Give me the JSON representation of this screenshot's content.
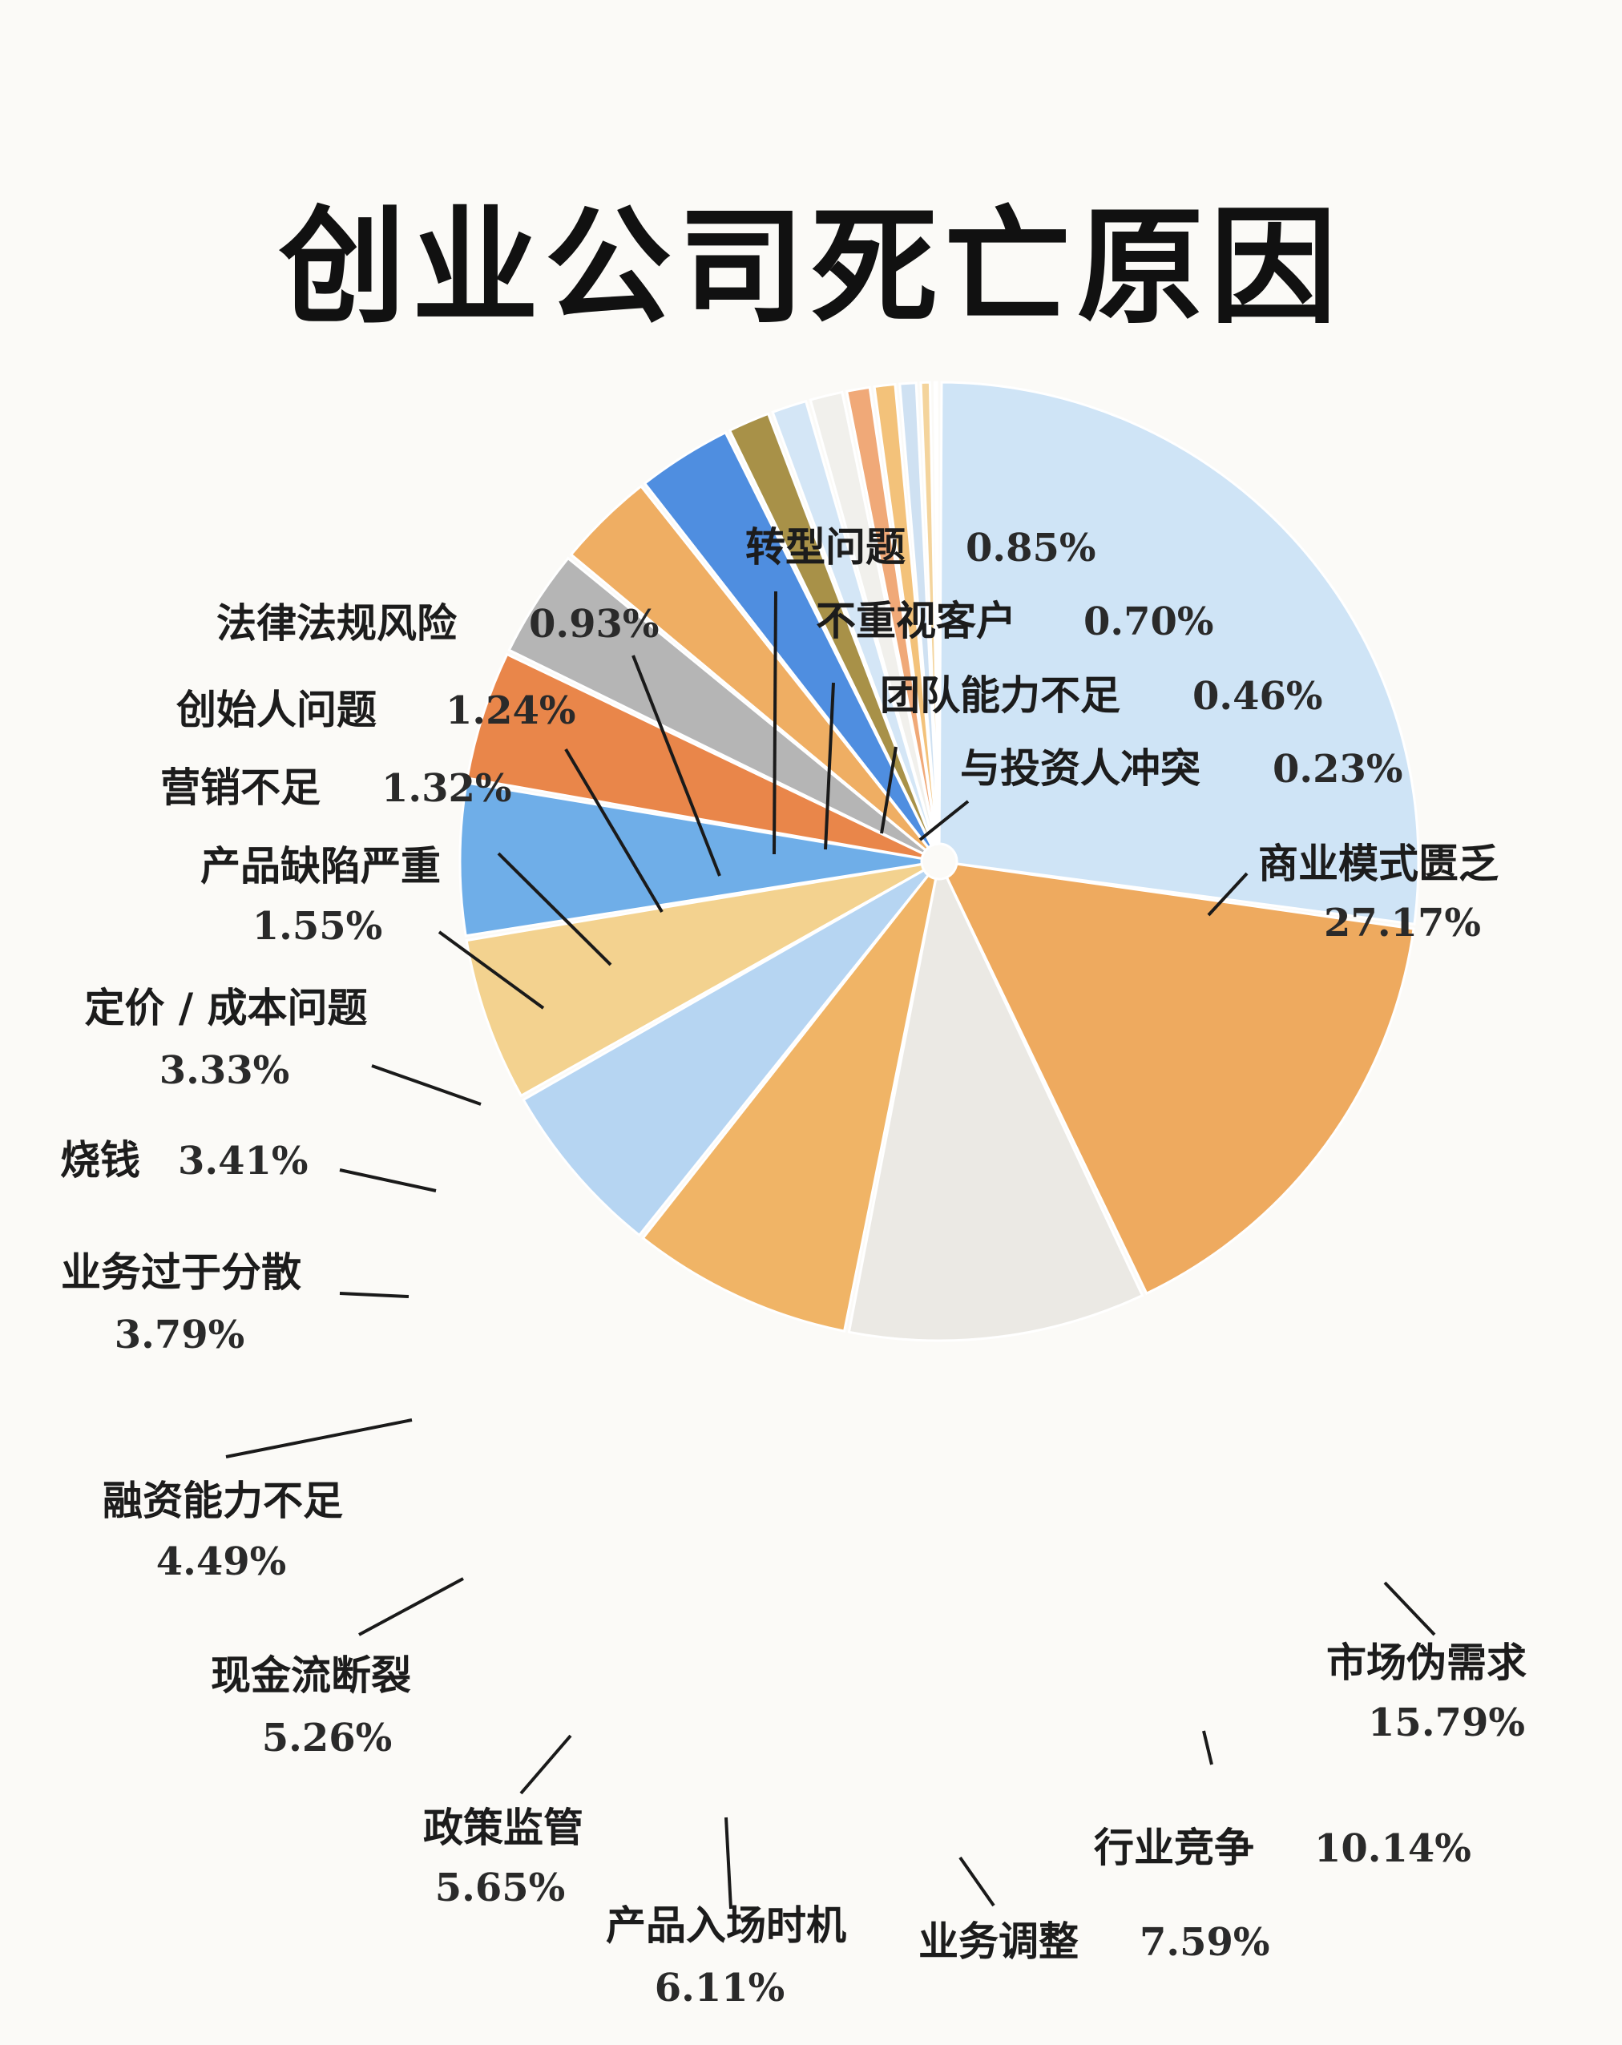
{
  "title": "创业公司死亡原因",
  "chart_data": {
    "type": "pie",
    "title": "创业公司死亡原因",
    "slices": [
      {
        "label": "商业模式匮乏",
        "value": 27.17,
        "value_label": "27.17%",
        "color": "#cfe4f6"
      },
      {
        "label": "市场伪需求",
        "value": 15.79,
        "value_label": "15.79%",
        "color": "#eeaa5f"
      },
      {
        "label": "行业竞争",
        "value": 10.14,
        "value_label": "10.14%",
        "color": "#ebe9e4"
      },
      {
        "label": "业务调整",
        "value": 7.59,
        "value_label": "7.59%",
        "color": "#f0b466"
      },
      {
        "label": "产品入场时机",
        "value": 6.11,
        "value_label": "6.11%",
        "color": "#b6d5f2"
      },
      {
        "label": "政策监管",
        "value": 5.65,
        "value_label": "5.65%",
        "color": "#f3d28f"
      },
      {
        "label": "现金流断裂",
        "value": 5.26,
        "value_label": "5.26%",
        "color": "#6faee8"
      },
      {
        "label": "融资能力不足",
        "value": 4.49,
        "value_label": "4.49%",
        "color": "#e9864a"
      },
      {
        "label": "业务过于分散",
        "value": 3.79,
        "value_label": "3.79%",
        "color": "#b5b5b5"
      },
      {
        "label": "烧钱",
        "value": 3.41,
        "value_label": "3.41%",
        "color": "#efae63"
      },
      {
        "label": "定价 / 成本问题",
        "value": 3.33,
        "value_label": "3.33%",
        "color": "#4f8ee0"
      },
      {
        "label": "产品缺陷严重",
        "value": 1.55,
        "value_label": "1.55%",
        "color": "#a89148"
      },
      {
        "label": "营销不足",
        "value": 1.32,
        "value_label": "1.32%",
        "color": "#d4e6f6"
      },
      {
        "label": "创始人问题",
        "value": 1.24,
        "value_label": "1.24%",
        "color": "#f1f0ec"
      },
      {
        "label": "法律法规风险",
        "value": 0.93,
        "value_label": "0.93%",
        "color": "#f0a978"
      },
      {
        "label": "转型问题",
        "value": 0.85,
        "value_label": "0.85%",
        "color": "#f3c27a"
      },
      {
        "label": "不重视客户",
        "value": 0.7,
        "value_label": "0.70%",
        "color": "#cfe1f2"
      },
      {
        "label": "团队能力不足",
        "value": 0.46,
        "value_label": "0.46%",
        "color": "#f4d49c"
      },
      {
        "label": "与投资人冲突",
        "value": 0.23,
        "value_label": "0.23%",
        "color": "#9ec8ec"
      }
    ]
  }
}
